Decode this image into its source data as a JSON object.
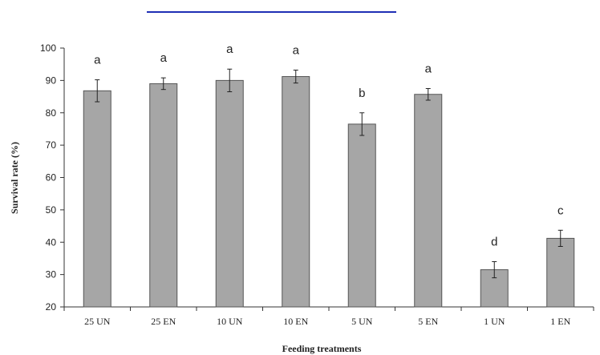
{
  "chart_data": {
    "type": "bar",
    "categories": [
      "25 UN",
      "25 EN",
      "10 UN",
      "10 EN",
      "5 UN",
      "5 EN",
      "1 UN",
      "1 EN"
    ],
    "values": [
      86.8,
      89.0,
      90.0,
      91.2,
      76.5,
      85.7,
      31.5,
      41.2
    ],
    "errors": [
      3.4,
      1.8,
      3.5,
      2.0,
      3.5,
      1.8,
      2.5,
      2.5
    ],
    "significance_letters": [
      "a",
      "a",
      "a",
      "a",
      "b",
      "a",
      "d",
      "c"
    ],
    "xlabel": "Feeding treatments",
    "ylabel": "Survival rate (%)",
    "ylim": [
      20,
      100
    ],
    "yticks": [
      20,
      30,
      40,
      50,
      60,
      70,
      80,
      90,
      100
    ],
    "grid": false,
    "bar_color": "#a6a6a6",
    "bar_edge_color": "#555555",
    "header_line_color": "#1f2fb5"
  }
}
